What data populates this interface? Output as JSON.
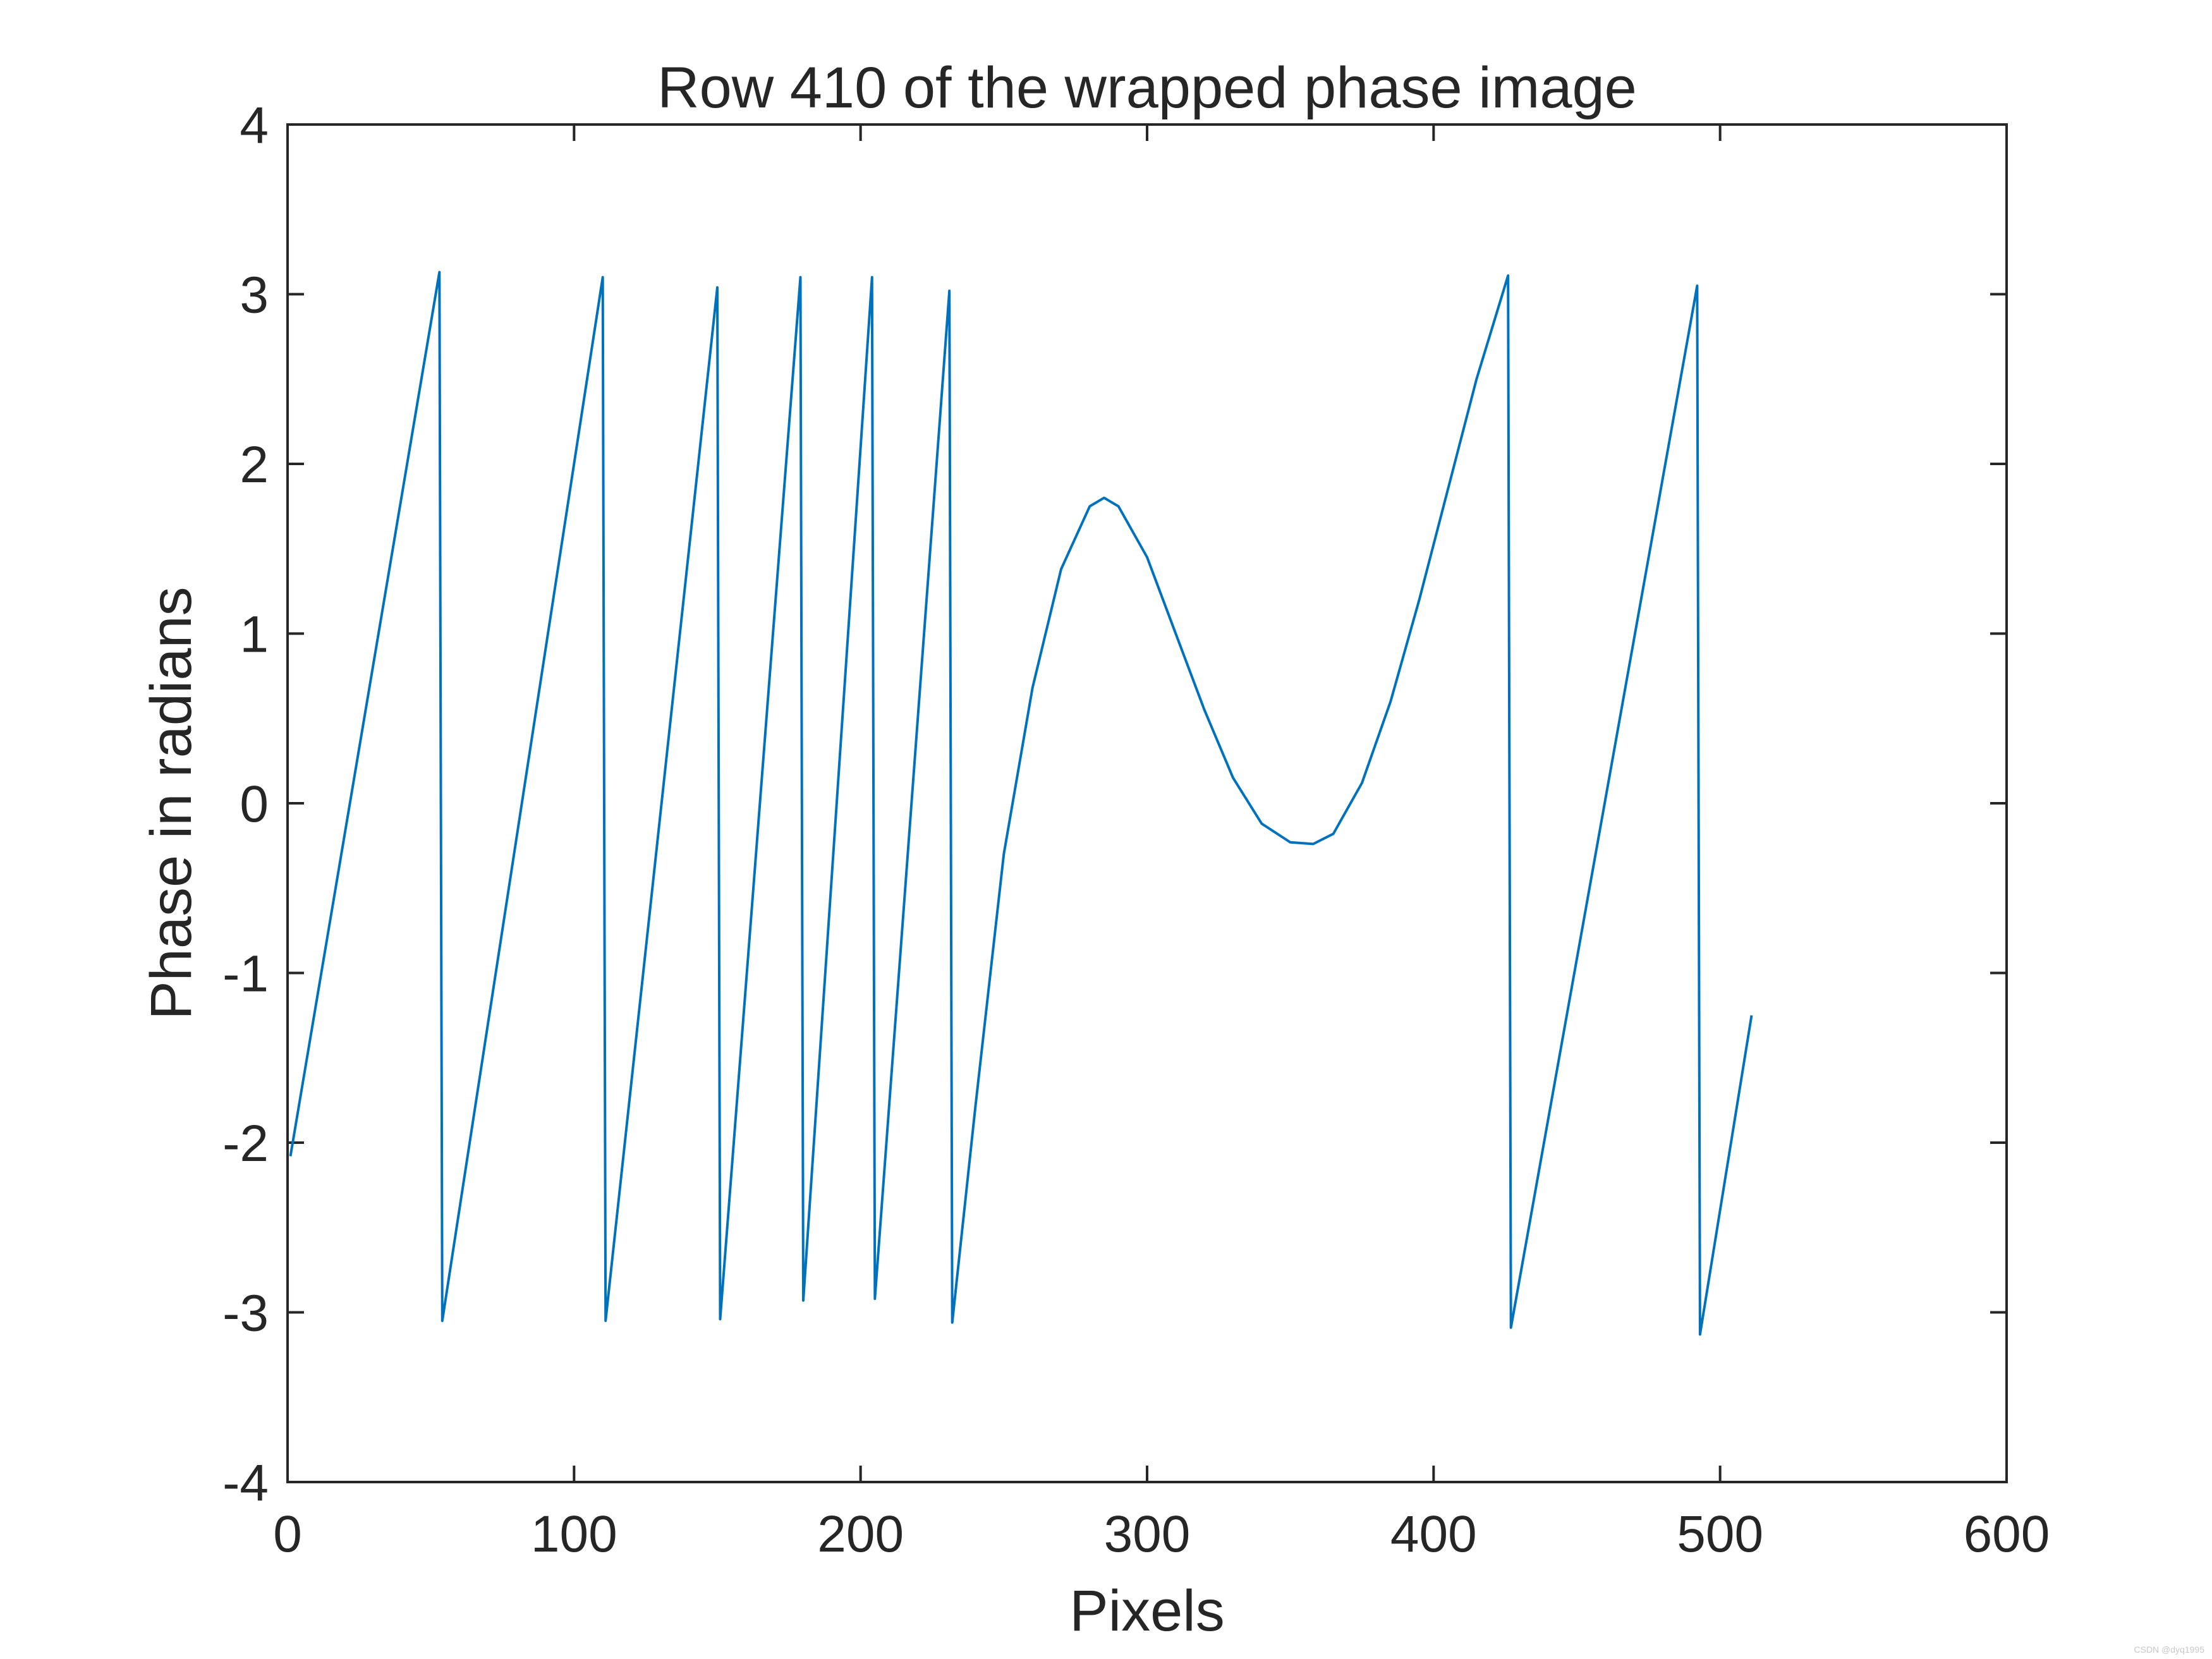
{
  "chart_data": {
    "type": "line",
    "title": "Row 410 of the wrapped phase image",
    "xlabel": "Pixels",
    "ylabel": "Phase in radians",
    "xlim": [
      0,
      600
    ],
    "ylim": [
      -4,
      4
    ],
    "xticks": [
      0,
      100,
      200,
      300,
      400,
      500,
      600
    ],
    "yticks": [
      -4,
      -3,
      -2,
      -1,
      0,
      1,
      2,
      3,
      4
    ],
    "xtick_labels": [
      "0",
      "100",
      "200",
      "300",
      "400",
      "500",
      "600"
    ],
    "ytick_labels": [
      "-4",
      "-3",
      "-2",
      "-1",
      "0",
      "1",
      "2",
      "3",
      "4"
    ],
    "grid": false,
    "legend": "none",
    "series": [
      {
        "color": "#0072BD",
        "points": [
          [
            1,
            -2.08
          ],
          [
            53,
            3.13
          ],
          [
            54,
            -3.05
          ],
          [
            110,
            3.1
          ],
          [
            111,
            -3.05
          ],
          [
            150,
            3.04
          ],
          [
            151,
            -3.04
          ],
          [
            179,
            3.1
          ],
          [
            180,
            -2.93
          ],
          [
            204,
            3.1
          ],
          [
            205,
            -2.92
          ],
          [
            231,
            3.02
          ],
          [
            232,
            -3.06
          ],
          [
            240,
            -1.8
          ],
          [
            250,
            -0.3
          ],
          [
            260,
            0.68
          ],
          [
            270,
            1.38
          ],
          [
            280,
            1.75
          ],
          [
            285,
            1.8
          ],
          [
            290,
            1.75
          ],
          [
            300,
            1.45
          ],
          [
            310,
            1.0
          ],
          [
            320,
            0.55
          ],
          [
            330,
            0.15
          ],
          [
            340,
            -0.12
          ],
          [
            350,
            -0.23
          ],
          [
            358,
            -0.24
          ],
          [
            365,
            -0.18
          ],
          [
            375,
            0.12
          ],
          [
            385,
            0.6
          ],
          [
            395,
            1.2
          ],
          [
            405,
            1.85
          ],
          [
            415,
            2.5
          ],
          [
            426,
            3.11
          ],
          [
            427,
            -3.09
          ],
          [
            492,
            3.05
          ],
          [
            493,
            -3.13
          ],
          [
            511,
            -1.25
          ]
        ]
      }
    ]
  },
  "watermark": "CSDN @dyq1995"
}
